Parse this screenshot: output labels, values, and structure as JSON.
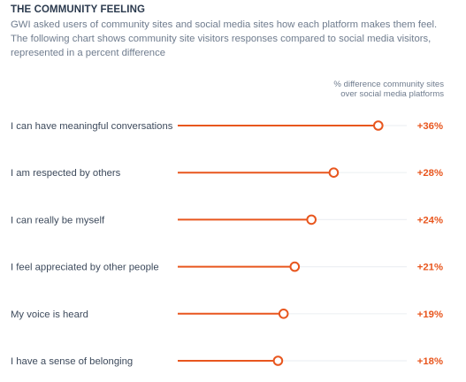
{
  "header": {
    "title": "THE COMMUNITY FEELING",
    "subtitle_lines": [
      "GWI asked users of community sites and social media sites how each platform makes them feel.",
      "The following chart shows community site visitors responses compared to social media visitors,",
      "represented in a percent difference"
    ]
  },
  "chart_data": {
    "type": "dot-line",
    "column_header_lines": [
      "% difference community sites",
      "over social media platforms"
    ],
    "categories": [
      "I can have meaningful conversations",
      "I am respected by others",
      "I can really be myself",
      "I feel appreciated by other people",
      "My voice is heard",
      "I have a sense of belonging"
    ],
    "values": [
      36,
      28,
      24,
      21,
      19,
      18
    ],
    "value_labels": [
      "+36%",
      "+28%",
      "+24%",
      "+21%",
      "+19%",
      "+18%"
    ],
    "color": "#e8561e",
    "track_color": "#eef0f3"
  }
}
